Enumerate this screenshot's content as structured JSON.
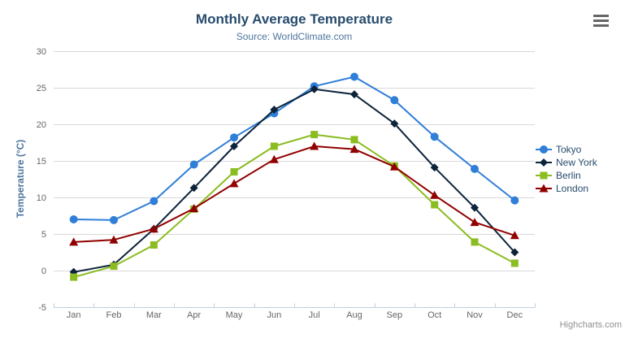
{
  "chart": {
    "credits_label": "Highcharts.com",
    "background_color": "#ffffff"
  },
  "chart_data": {
    "type": "line",
    "title": "Monthly Average Temperature",
    "subtitle": "Source: WorldClimate.com",
    "xlabel": "",
    "ylabel": "Temperature (°C)",
    "categories": [
      "Jan",
      "Feb",
      "Mar",
      "Apr",
      "May",
      "Jun",
      "Jul",
      "Aug",
      "Sep",
      "Oct",
      "Nov",
      "Dec"
    ],
    "series": [
      {
        "name": "Tokyo",
        "color": "#2f7ed8",
        "marker": "circle",
        "values": [
          7.0,
          6.9,
          9.5,
          14.5,
          18.2,
          21.5,
          25.2,
          26.5,
          23.3,
          18.3,
          13.9,
          9.6
        ]
      },
      {
        "name": "New York",
        "color": "#0d233a",
        "marker": "diamond",
        "values": [
          -0.2,
          0.8,
          5.7,
          11.3,
          17.0,
          22.0,
          24.8,
          24.1,
          20.1,
          14.1,
          8.6,
          2.5
        ]
      },
      {
        "name": "Berlin",
        "color": "#8bbc21",
        "marker": "square",
        "values": [
          -0.9,
          0.6,
          3.5,
          8.4,
          13.5,
          17.0,
          18.6,
          17.9,
          14.3,
          9.0,
          3.9,
          1.0
        ]
      },
      {
        "name": "London",
        "color": "#910000",
        "marker": "triangle",
        "values": [
          3.9,
          4.2,
          5.7,
          8.5,
          11.9,
          15.2,
          17.0,
          16.6,
          14.2,
          10.3,
          6.6,
          4.8
        ]
      }
    ],
    "ylim": [
      -5,
      30
    ],
    "ytick_step": 5,
    "grid": true,
    "legend_position": "right",
    "grid_color": "#d8d8d8",
    "axis_line_color": "#c0d0e0",
    "axis_label_color": "#666666",
    "legend_text_color": "#274b6d"
  }
}
